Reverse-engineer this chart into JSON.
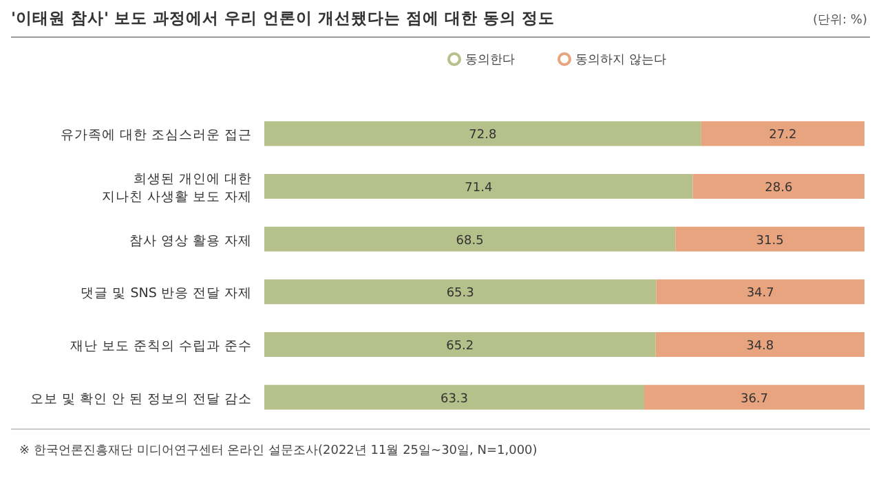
{
  "chart_data": {
    "type": "bar",
    "orientation": "horizontal",
    "stacked": true,
    "data_labels": true,
    "legend": "top",
    "grid": false,
    "title": "'이태원 참사' 보도 과정에서 우리 언론이 개선됐다는 점에 대한 동의 정도",
    "annotations": [
      "(단위: %)",
      "※ 한국언론진흥재단 미디어연구센터 온라인 설문조사(2022년 11월 25일~30일, N=1,000)"
    ],
    "categories": [
      "유가족에 대한 조심스러운 접근",
      "희생된 개인에 대한\n지나친 사생활 보도 자제",
      "참사 영상 활용 자제",
      "댓글 및 SNS 반응 전달 자제",
      "재난 보도 준칙의 수립과 준수",
      "오보 및 확인 안 된 정보의 전달 감소"
    ],
    "xlim": [
      0,
      100
    ],
    "series": [
      {
        "name": "동의한다",
        "color": "#b5c08a",
        "values": [
          72.8,
          71.4,
          68.5,
          65.3,
          65.2,
          63.3
        ]
      },
      {
        "name": "동의하지 않는다",
        "color": "#e8a47e",
        "values": [
          27.2,
          28.6,
          31.5,
          34.7,
          34.8,
          36.7
        ]
      }
    ]
  }
}
